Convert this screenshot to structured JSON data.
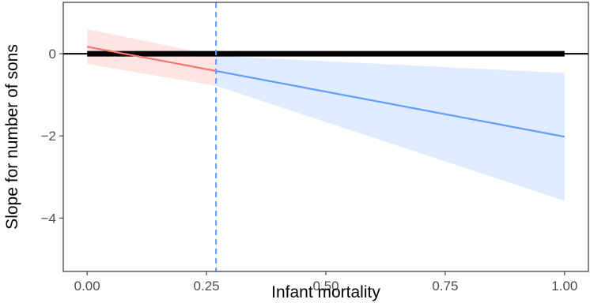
{
  "chart_data": {
    "type": "line",
    "xlabel": "Infant mortality",
    "ylabel": "Slope for number of sons",
    "xlim": [
      -0.05,
      1.05
    ],
    "ylim": [
      -5.3,
      1.25
    ],
    "x_ticks": [
      0.0,
      0.25,
      0.5,
      0.75,
      1.0
    ],
    "x_tick_labels": [
      "0.00",
      "0.25",
      "0.50",
      "0.75",
      "1.00"
    ],
    "y_ticks": [
      0,
      -2,
      -4
    ],
    "y_tick_labels": [
      "0",
      "−2",
      "−4"
    ],
    "grid": false,
    "legend": "none",
    "threshold_x": 0.27,
    "reference_line": {
      "y": 0,
      "x_range": [
        0.0,
        1.0
      ]
    },
    "series": [
      {
        "color": "#F8766D",
        "band_color": "#F8766D",
        "x": [
          0.0,
          0.27
        ],
        "y": [
          0.17,
          -0.42
        ],
        "ci_low": [
          -0.25,
          -0.78
        ],
        "ci_high": [
          0.6,
          -0.05
        ]
      },
      {
        "color": "#619CFF",
        "band_color": "#619CFF",
        "x": [
          0.27,
          1.0
        ],
        "y": [
          -0.42,
          -2.02
        ],
        "ci_low": [
          -0.78,
          -3.58
        ],
        "ci_high": [
          -0.05,
          -0.47
        ]
      }
    ]
  }
}
